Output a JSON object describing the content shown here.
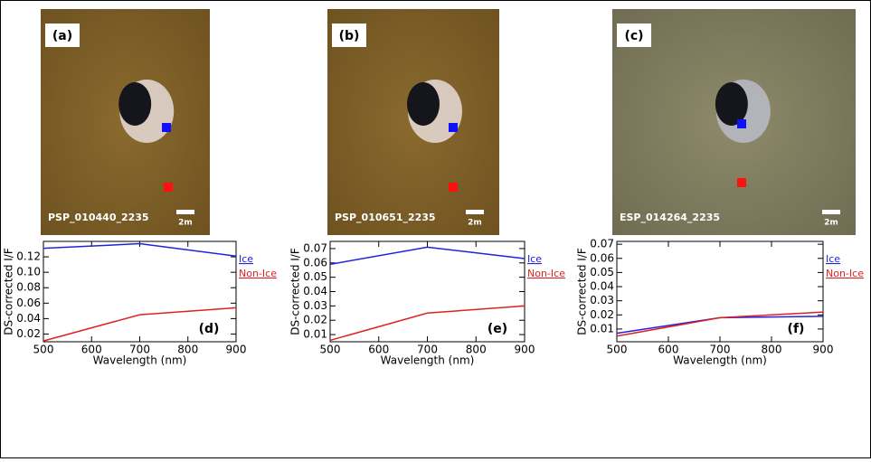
{
  "images": [
    {
      "label": "(a)",
      "id": "PSP_010440_2235",
      "scale": "2m"
    },
    {
      "label": "(b)",
      "id": "PSP_010651_2235",
      "scale": "2m"
    },
    {
      "label": "(c)",
      "id": "ESP_014264_2235",
      "scale": "2m"
    }
  ],
  "chart_data": [
    {
      "type": "line",
      "annotation": "(d)",
      "x_label": "Wavelength (nm)",
      "y_label": "DS-corrected I/F",
      "x": [
        500,
        700,
        900
      ],
      "xlim": [
        500,
        900
      ],
      "xticks": [
        500,
        600,
        700,
        800,
        900
      ],
      "ylim": [
        0.01,
        0.14
      ],
      "yticks": [
        0.02,
        0.04,
        0.06,
        0.08,
        {
          "value": 0.1,
          "label": "0.10"
        },
        0.12
      ],
      "series": [
        {
          "name": "Ice",
          "color": "#2222dd",
          "values": [
            0.131,
            0.137,
            0.121
          ]
        },
        {
          "name": "Non-Ice",
          "color": "#dd2222",
          "values": [
            0.011,
            0.045,
            0.054
          ]
        }
      ]
    },
    {
      "type": "line",
      "annotation": "(e)",
      "x_label": "Wavelength (nm)",
      "y_label": "DS-corrected I/F",
      "x": [
        500,
        700,
        900
      ],
      "xlim": [
        500,
        900
      ],
      "xticks": [
        500,
        600,
        700,
        800,
        900
      ],
      "ylim": [
        0.005,
        0.075
      ],
      "yticks": [
        0.01,
        0.02,
        0.03,
        0.04,
        0.05,
        0.06,
        0.07
      ],
      "series": [
        {
          "name": "Ice",
          "color": "#2222dd",
          "values": [
            0.059,
            0.071,
            0.063
          ]
        },
        {
          "name": "Non-Ice",
          "color": "#dd2222",
          "values": [
            0.006,
            0.025,
            0.03
          ]
        }
      ]
    },
    {
      "type": "line",
      "annotation": "(f)",
      "x_label": "Wavelength (nm)",
      "y_label": "DS-corrected I/F",
      "x": [
        500,
        700,
        900
      ],
      "xlim": [
        500,
        900
      ],
      "xticks": [
        500,
        600,
        700,
        800,
        900
      ],
      "ylim": [
        0.001,
        0.072
      ],
      "yticks": [
        0.01,
        0.02,
        0.03,
        0.04,
        0.05,
        0.06,
        0.07
      ],
      "series": [
        {
          "name": "Ice",
          "color": "#2222dd",
          "values": [
            0.007,
            0.018,
            0.019
          ]
        },
        {
          "name": "Non-Ice",
          "color": "#dd2222",
          "values": [
            0.005,
            0.018,
            0.022
          ]
        }
      ]
    }
  ]
}
